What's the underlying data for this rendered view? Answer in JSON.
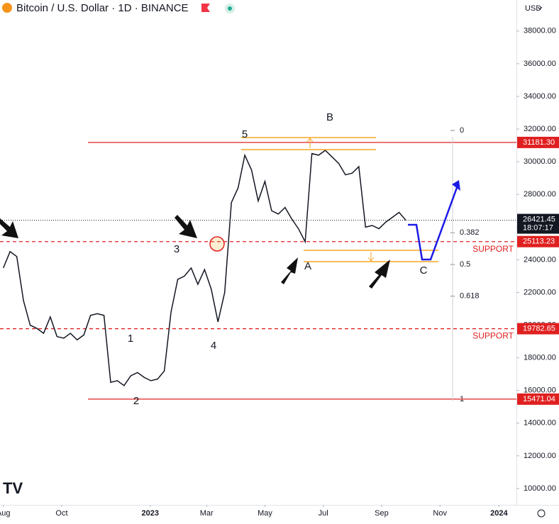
{
  "chart_data": {
    "type": "line",
    "title": "Bitcoin / U.S. Dollar · 1D · BINANCE",
    "currency": "USD",
    "series": [
      {
        "name": "BTCUSD",
        "color": "#131722",
        "values": [
          23500,
          24500,
          24200,
          21500,
          20000,
          19800,
          19500,
          20500,
          19300,
          19200,
          19500,
          19100,
          19400,
          20600,
          20700,
          20600,
          16500,
          16600,
          16300,
          16900,
          17100,
          16800,
          16600,
          16700,
          17200,
          20800,
          22800,
          23000,
          23500,
          22500,
          23400,
          22200,
          20200,
          22000,
          27500,
          28400,
          30400,
          29500,
          27600,
          28800,
          27000,
          26800,
          27200,
          26500,
          25900,
          25100,
          30500,
          30400,
          30700,
          30300,
          29900,
          29200,
          29300,
          29700,
          26000,
          26100,
          25900,
          26300,
          26600,
          26900,
          26421.45
        ]
      }
    ],
    "ylim": [
      9000,
      39900
    ],
    "yticks": [
      {
        "value": 10000,
        "label": "10000.00"
      },
      {
        "value": 12000,
        "label": "12000.00"
      },
      {
        "value": 14000,
        "label": "14000.00"
      },
      {
        "value": 16000,
        "label": "16000.00"
      },
      {
        "value": 18000,
        "label": "18000.00"
      },
      {
        "value": 20000,
        "label": "20000.00"
      },
      {
        "value": 22000,
        "label": "22000.00"
      },
      {
        "value": 24000,
        "label": "24000.00"
      },
      {
        "value": 26000,
        "label": "26000.00"
      },
      {
        "value": 28000,
        "label": "28000.00"
      },
      {
        "value": 30000,
        "label": "30000.00"
      },
      {
        "value": 32000,
        "label": "32000.00"
      },
      {
        "value": 34000,
        "label": "34000.00"
      },
      {
        "value": 36000,
        "label": "36000.00"
      },
      {
        "value": 38000,
        "label": "38000.00"
      }
    ],
    "xlim": [
      -0.5,
      76.5
    ],
    "xticks": [
      {
        "value": 0,
        "label": "Aug"
      },
      {
        "value": 8.7,
        "label": "Oct"
      },
      {
        "value": 21.9,
        "label": "2023"
      },
      {
        "value": 30.3,
        "label": "Mar"
      },
      {
        "value": 39,
        "label": "May"
      },
      {
        "value": 47.7,
        "label": "Jul"
      },
      {
        "value": 56.4,
        "label": "Sep"
      },
      {
        "value": 65.1,
        "label": "Nov"
      },
      {
        "value": 73.9,
        "label": "2024"
      }
    ],
    "levels": [
      {
        "value": 31181.3,
        "label": "31181.30",
        "style": "solid",
        "color": "#e02020"
      },
      {
        "value": 25113.23,
        "label": "25113.23",
        "style": "dashed",
        "color": "#e02020",
        "note": "SUPPORT"
      },
      {
        "value": 19782.65,
        "label": "19782.65",
        "style": "dashed",
        "color": "#e02020",
        "note": "SUPPORT"
      },
      {
        "value": 15471.04,
        "label": "15471.04",
        "style": "solid",
        "color": "#e02020"
      }
    ],
    "last_price": {
      "value": 26421.45,
      "label": "26421.45",
      "countdown": "18:07:17"
    },
    "fib": [
      {
        "value": 31915,
        "label": "0"
      },
      {
        "value": 25654,
        "label": "0.382"
      },
      {
        "value": 23713,
        "label": "0.5"
      },
      {
        "value": 21773,
        "label": "0.618"
      },
      {
        "value": 15471,
        "label": "1"
      }
    ],
    "waves": [
      "5",
      "B",
      "3",
      "A",
      "C",
      "1",
      "4",
      "2"
    ]
  }
}
